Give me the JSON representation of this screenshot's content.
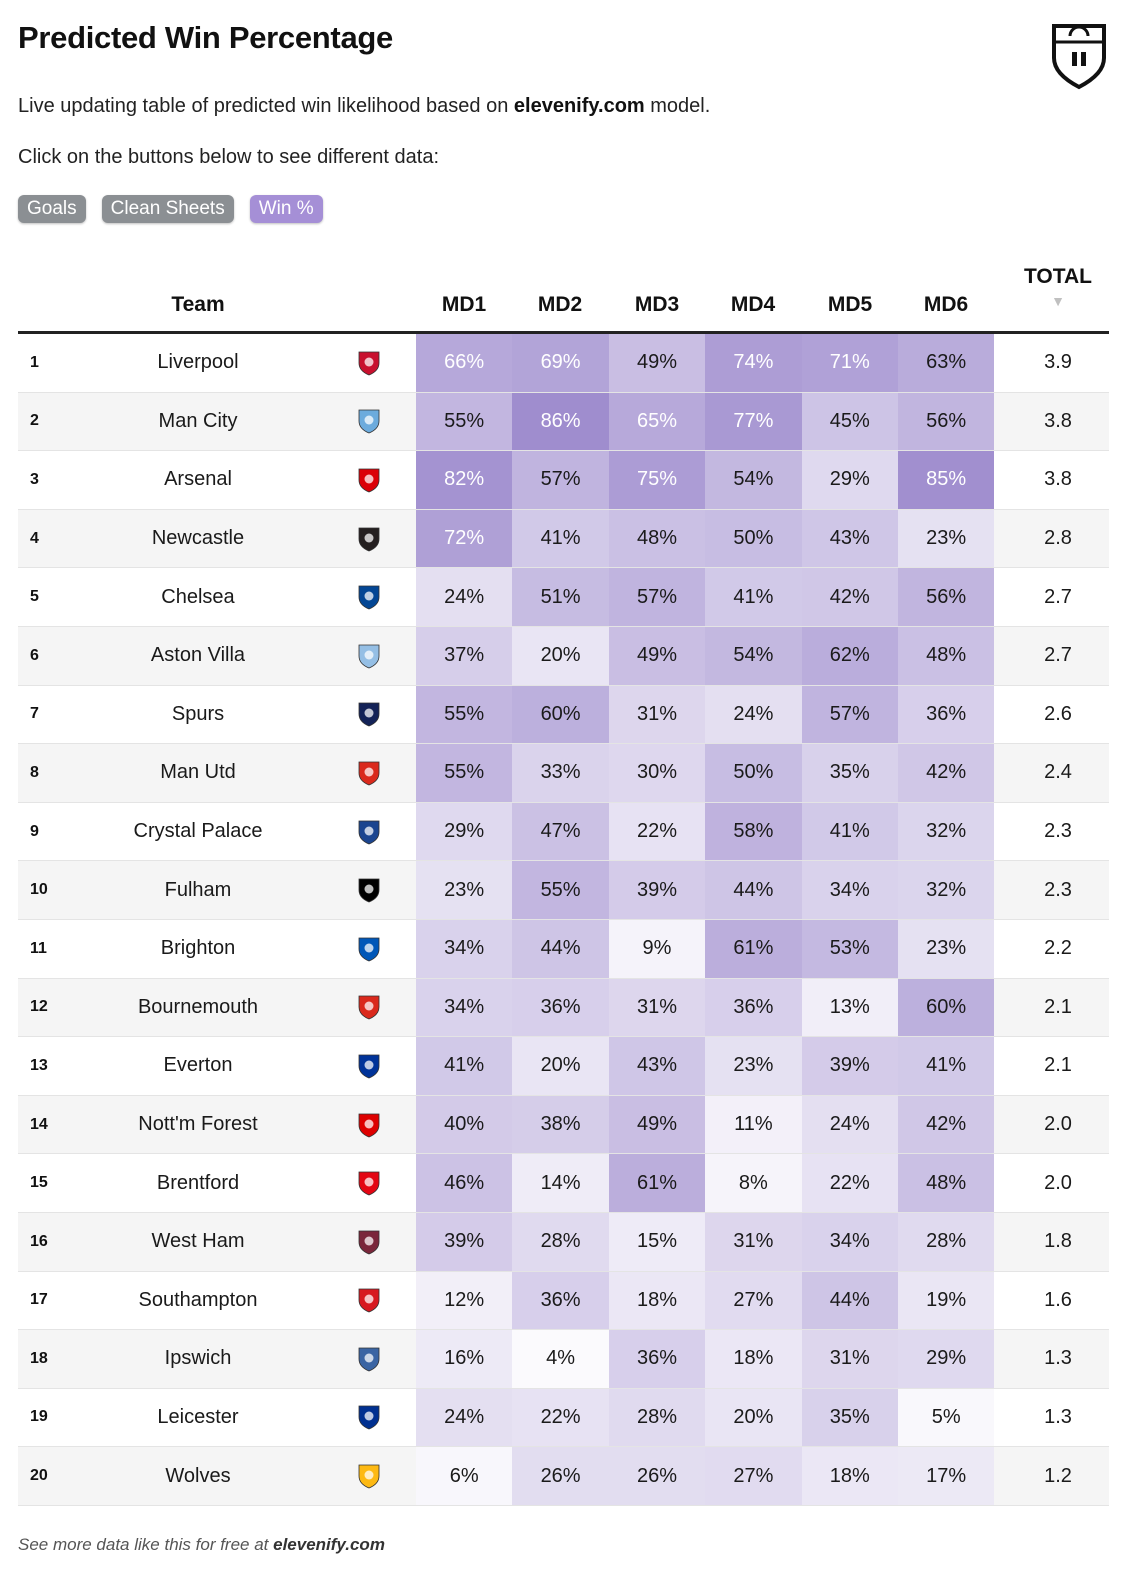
{
  "header": {
    "title": "Predicted Win Percentage",
    "subtitle_before": "Live updating table of predicted win likelihood based on ",
    "subtitle_site": "elevenify.com",
    "subtitle_after": " model.",
    "instruction": "Click on the buttons below to see different data:"
  },
  "buttons": [
    {
      "label": "Goals",
      "active": false
    },
    {
      "label": "Clean Sheets",
      "active": false
    },
    {
      "label": "Win %",
      "active": true
    }
  ],
  "colors": {
    "accent": "#a58fd6",
    "button_grey": "#8b8f93",
    "heat_base": "#9b88cc"
  },
  "table": {
    "columns": {
      "team": "Team",
      "md": [
        "MD1",
        "MD2",
        "MD3",
        "MD4",
        "MD5",
        "MD6"
      ],
      "total": "TOTAL",
      "sort_icon": "▼"
    },
    "rows": [
      {
        "rank": "1",
        "team": "Liverpool",
        "crest": "liverpool-crest",
        "crest_color": "#c8102e",
        "values": [
          66,
          69,
          49,
          74,
          71,
          63
        ],
        "total": "3.9"
      },
      {
        "rank": "2",
        "team": "Man City",
        "crest": "man-city-crest",
        "crest_color": "#6cabdd",
        "values": [
          55,
          86,
          65,
          77,
          45,
          56
        ],
        "total": "3.8"
      },
      {
        "rank": "3",
        "team": "Arsenal",
        "crest": "arsenal-crest",
        "crest_color": "#db0007",
        "values": [
          82,
          57,
          75,
          54,
          29,
          85
        ],
        "total": "3.8"
      },
      {
        "rank": "4",
        "team": "Newcastle",
        "crest": "newcastle-crest",
        "crest_color": "#241f20",
        "values": [
          72,
          41,
          48,
          50,
          43,
          23
        ],
        "total": "2.8"
      },
      {
        "rank": "5",
        "team": "Chelsea",
        "crest": "chelsea-crest",
        "crest_color": "#034694",
        "values": [
          24,
          51,
          57,
          41,
          42,
          56
        ],
        "total": "2.7"
      },
      {
        "rank": "6",
        "team": "Aston Villa",
        "crest": "aston-villa-crest",
        "crest_color": "#95bfe5",
        "values": [
          37,
          20,
          49,
          54,
          62,
          48
        ],
        "total": "2.7"
      },
      {
        "rank": "7",
        "team": "Spurs",
        "crest": "spurs-crest",
        "crest_color": "#132257",
        "values": [
          55,
          60,
          31,
          24,
          57,
          36
        ],
        "total": "2.6"
      },
      {
        "rank": "8",
        "team": "Man Utd",
        "crest": "man-utd-crest",
        "crest_color": "#da291c",
        "values": [
          55,
          33,
          30,
          50,
          35,
          42
        ],
        "total": "2.4"
      },
      {
        "rank": "9",
        "team": "Crystal Palace",
        "crest": "crystal-palace-crest",
        "crest_color": "#1b458f",
        "values": [
          29,
          47,
          22,
          58,
          41,
          32
        ],
        "total": "2.3"
      },
      {
        "rank": "10",
        "team": "Fulham",
        "crest": "fulham-crest",
        "crest_color": "#000000",
        "values": [
          23,
          55,
          39,
          44,
          34,
          32
        ],
        "total": "2.3"
      },
      {
        "rank": "11",
        "team": "Brighton",
        "crest": "brighton-crest",
        "crest_color": "#0057b8",
        "values": [
          34,
          44,
          9,
          61,
          53,
          23
        ],
        "total": "2.2"
      },
      {
        "rank": "12",
        "team": "Bournemouth",
        "crest": "bournemouth-crest",
        "crest_color": "#da291c",
        "values": [
          34,
          36,
          31,
          36,
          13,
          60
        ],
        "total": "2.1"
      },
      {
        "rank": "13",
        "team": "Everton",
        "crest": "everton-crest",
        "crest_color": "#003399",
        "values": [
          41,
          20,
          43,
          23,
          39,
          41
        ],
        "total": "2.1"
      },
      {
        "rank": "14",
        "team": "Nott'm Forest",
        "crest": "nottm-forest-crest",
        "crest_color": "#dd0000",
        "values": [
          40,
          38,
          49,
          11,
          24,
          42
        ],
        "total": "2.0"
      },
      {
        "rank": "15",
        "team": "Brentford",
        "crest": "brentford-crest",
        "crest_color": "#e30613",
        "values": [
          46,
          14,
          61,
          8,
          22,
          48
        ],
        "total": "2.0"
      },
      {
        "rank": "16",
        "team": "West Ham",
        "crest": "west-ham-crest",
        "crest_color": "#7a263a",
        "values": [
          39,
          28,
          15,
          31,
          34,
          28
        ],
        "total": "1.8"
      },
      {
        "rank": "17",
        "team": "Southampton",
        "crest": "southampton-crest",
        "crest_color": "#d71920",
        "values": [
          12,
          36,
          18,
          27,
          44,
          19
        ],
        "total": "1.6"
      },
      {
        "rank": "18",
        "team": "Ipswich",
        "crest": "ipswich-crest",
        "crest_color": "#3a64a3",
        "values": [
          16,
          4,
          36,
          18,
          31,
          29
        ],
        "total": "1.3"
      },
      {
        "rank": "19",
        "team": "Leicester",
        "crest": "leicester-crest",
        "crest_color": "#003090",
        "values": [
          24,
          22,
          28,
          20,
          35,
          5
        ],
        "total": "1.3"
      },
      {
        "rank": "20",
        "team": "Wolves",
        "crest": "wolves-crest",
        "crest_color": "#fdb913",
        "values": [
          6,
          26,
          26,
          27,
          18,
          17
        ],
        "total": "1.2"
      }
    ]
  },
  "footer": {
    "text": "See more data like this for free at ",
    "site": "elevenify.com"
  }
}
